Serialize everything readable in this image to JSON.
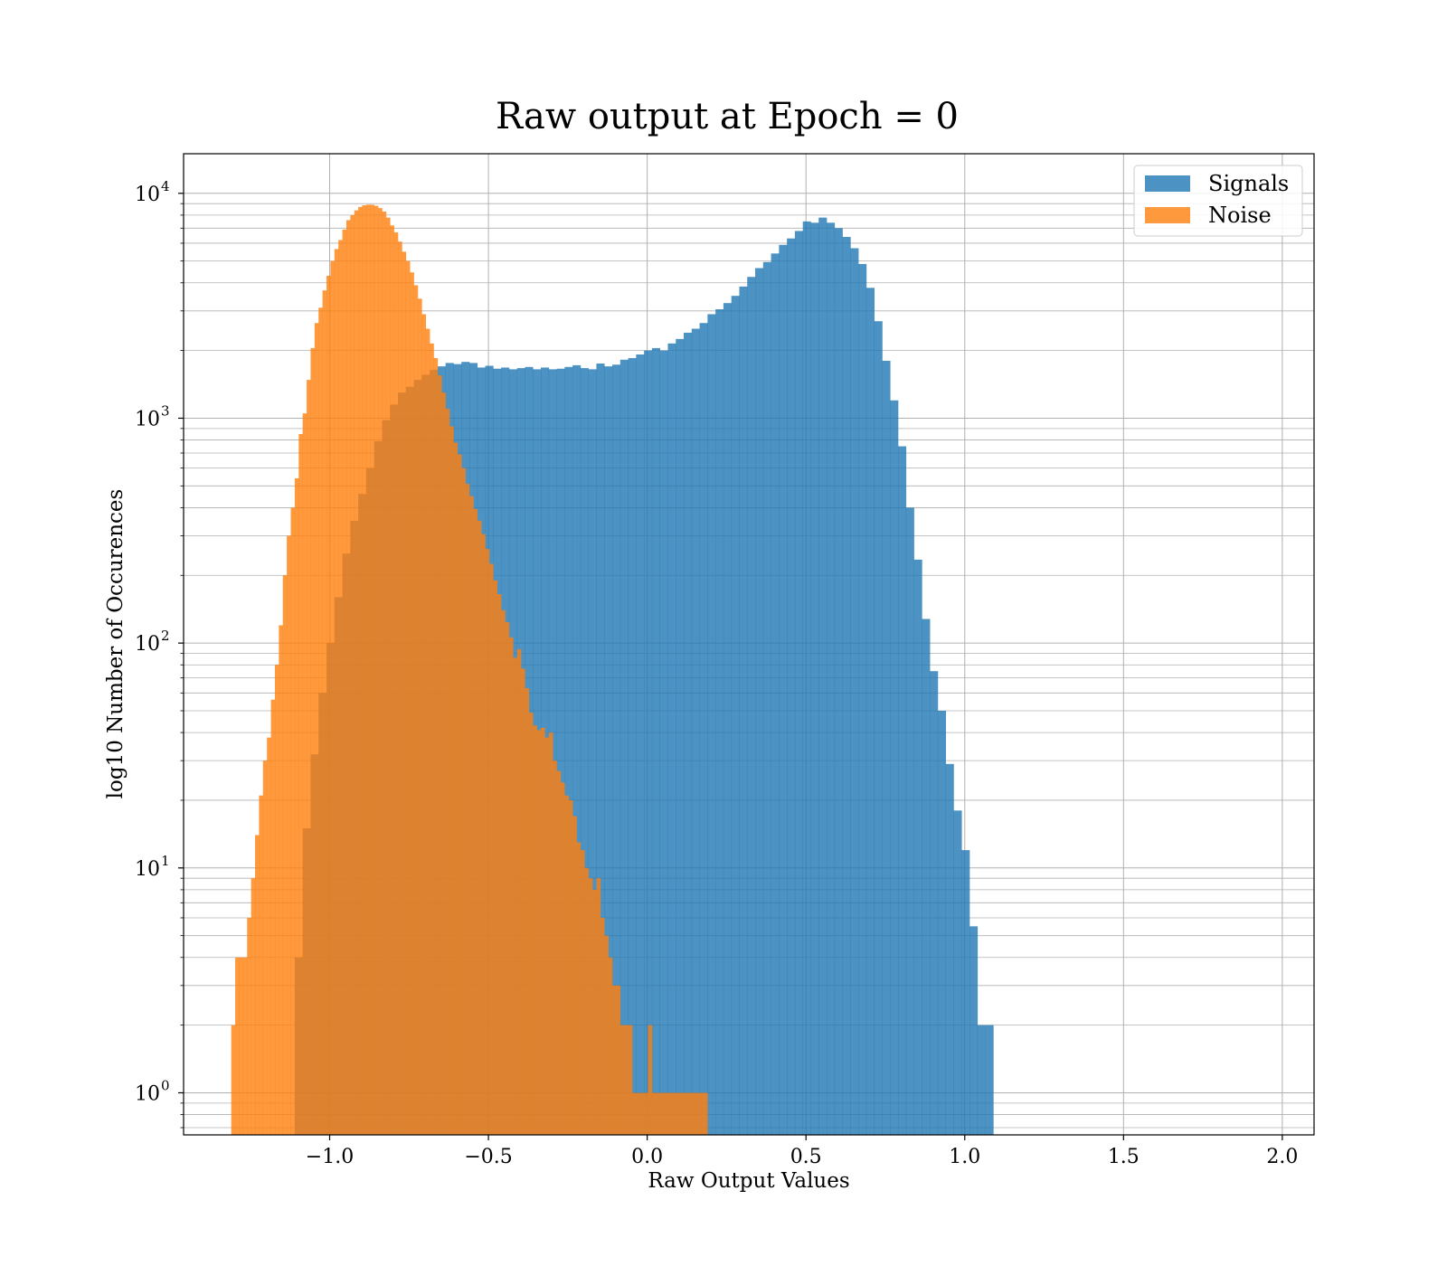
{
  "chart_data": {
    "type": "bar",
    "title": "Raw output at Epoch = 0",
    "xlabel": "Raw Output Values",
    "ylabel": "log10 Number of Occurences",
    "xlim": [
      -1.46,
      2.1
    ],
    "ylim": [
      0.65,
      15000
    ],
    "yscale": "log",
    "grid": true,
    "legend_position": "top-right",
    "x_ticks": [
      {
        "value": -1.0,
        "label": "−1.0"
      },
      {
        "value": -0.5,
        "label": "−0.5"
      },
      {
        "value": 0.0,
        "label": "0.0"
      },
      {
        "value": 0.5,
        "label": "0.5"
      },
      {
        "value": 1.0,
        "label": "1.0"
      },
      {
        "value": 1.5,
        "label": "1.5"
      },
      {
        "value": 2.0,
        "label": "2.0"
      }
    ],
    "y_ticks": [
      {
        "value": 1,
        "base": "10",
        "exp": "0"
      },
      {
        "value": 10,
        "base": "10",
        "exp": "1"
      },
      {
        "value": 100,
        "base": "10",
        "exp": "2"
      },
      {
        "value": 1000,
        "base": "10",
        "exp": "3"
      },
      {
        "value": 10000,
        "base": "10",
        "exp": "4"
      }
    ],
    "series": [
      {
        "name": "Signals",
        "color": "#1f77b4",
        "alpha": 0.8,
        "bin_start": -1.11,
        "bin_width": 0.025,
        "values": [
          4,
          15,
          32,
          60,
          100,
          160,
          250,
          350,
          460,
          600,
          790,
          980,
          1150,
          1300,
          1380,
          1480,
          1560,
          1640,
          1700,
          1760,
          1740,
          1780,
          1760,
          1680,
          1710,
          1660,
          1680,
          1650,
          1670,
          1690,
          1650,
          1680,
          1650,
          1660,
          1690,
          1720,
          1670,
          1650,
          1750,
          1700,
          1730,
          1820,
          1850,
          1920,
          2000,
          2050,
          2000,
          2150,
          2250,
          2400,
          2500,
          2650,
          2900,
          3050,
          3250,
          3500,
          3850,
          4250,
          4650,
          4950,
          5400,
          5900,
          6300,
          6800,
          7500,
          7400,
          7800,
          7400,
          7000,
          6400,
          5700,
          4850,
          3800,
          2700,
          1800,
          1200,
          750,
          400,
          235,
          128,
          75,
          50,
          29,
          18,
          12,
          5.5,
          2,
          2
        ]
      },
      {
        "name": "Noise",
        "color": "#ff7f0e",
        "alpha": 0.8,
        "bin_start": -1.31,
        "bin_width": 0.0125,
        "values": [
          2,
          4,
          4,
          4,
          6,
          9,
          14,
          21,
          30,
          38,
          56,
          80,
          120,
          200,
          300,
          400,
          540,
          850,
          1050,
          1480,
          2050,
          2650,
          3100,
          3700,
          4300,
          5000,
          5650,
          6200,
          6900,
          7600,
          8000,
          8400,
          8700,
          8850,
          8900,
          8900,
          8800,
          8600,
          8300,
          7800,
          7200,
          6700,
          6100,
          5500,
          5000,
          4450,
          3900,
          3400,
          2900,
          2500,
          2150,
          1850,
          1550,
          1300,
          1100,
          920,
          780,
          690,
          600,
          510,
          450,
          395,
          350,
          305,
          262,
          225,
          190,
          165,
          140,
          124,
          106,
          86,
          94,
          77,
          63,
          49,
          43,
          41,
          42,
          38,
          40,
          30,
          27,
          24,
          21,
          20,
          17,
          13,
          12,
          10,
          9,
          8,
          9,
          6,
          5,
          4,
          3,
          3,
          2,
          2,
          2,
          1,
          1,
          1,
          1,
          2,
          1,
          1,
          1,
          1,
          1,
          1,
          1,
          1,
          1,
          1,
          1,
          1,
          1,
          1
        ]
      }
    ]
  }
}
